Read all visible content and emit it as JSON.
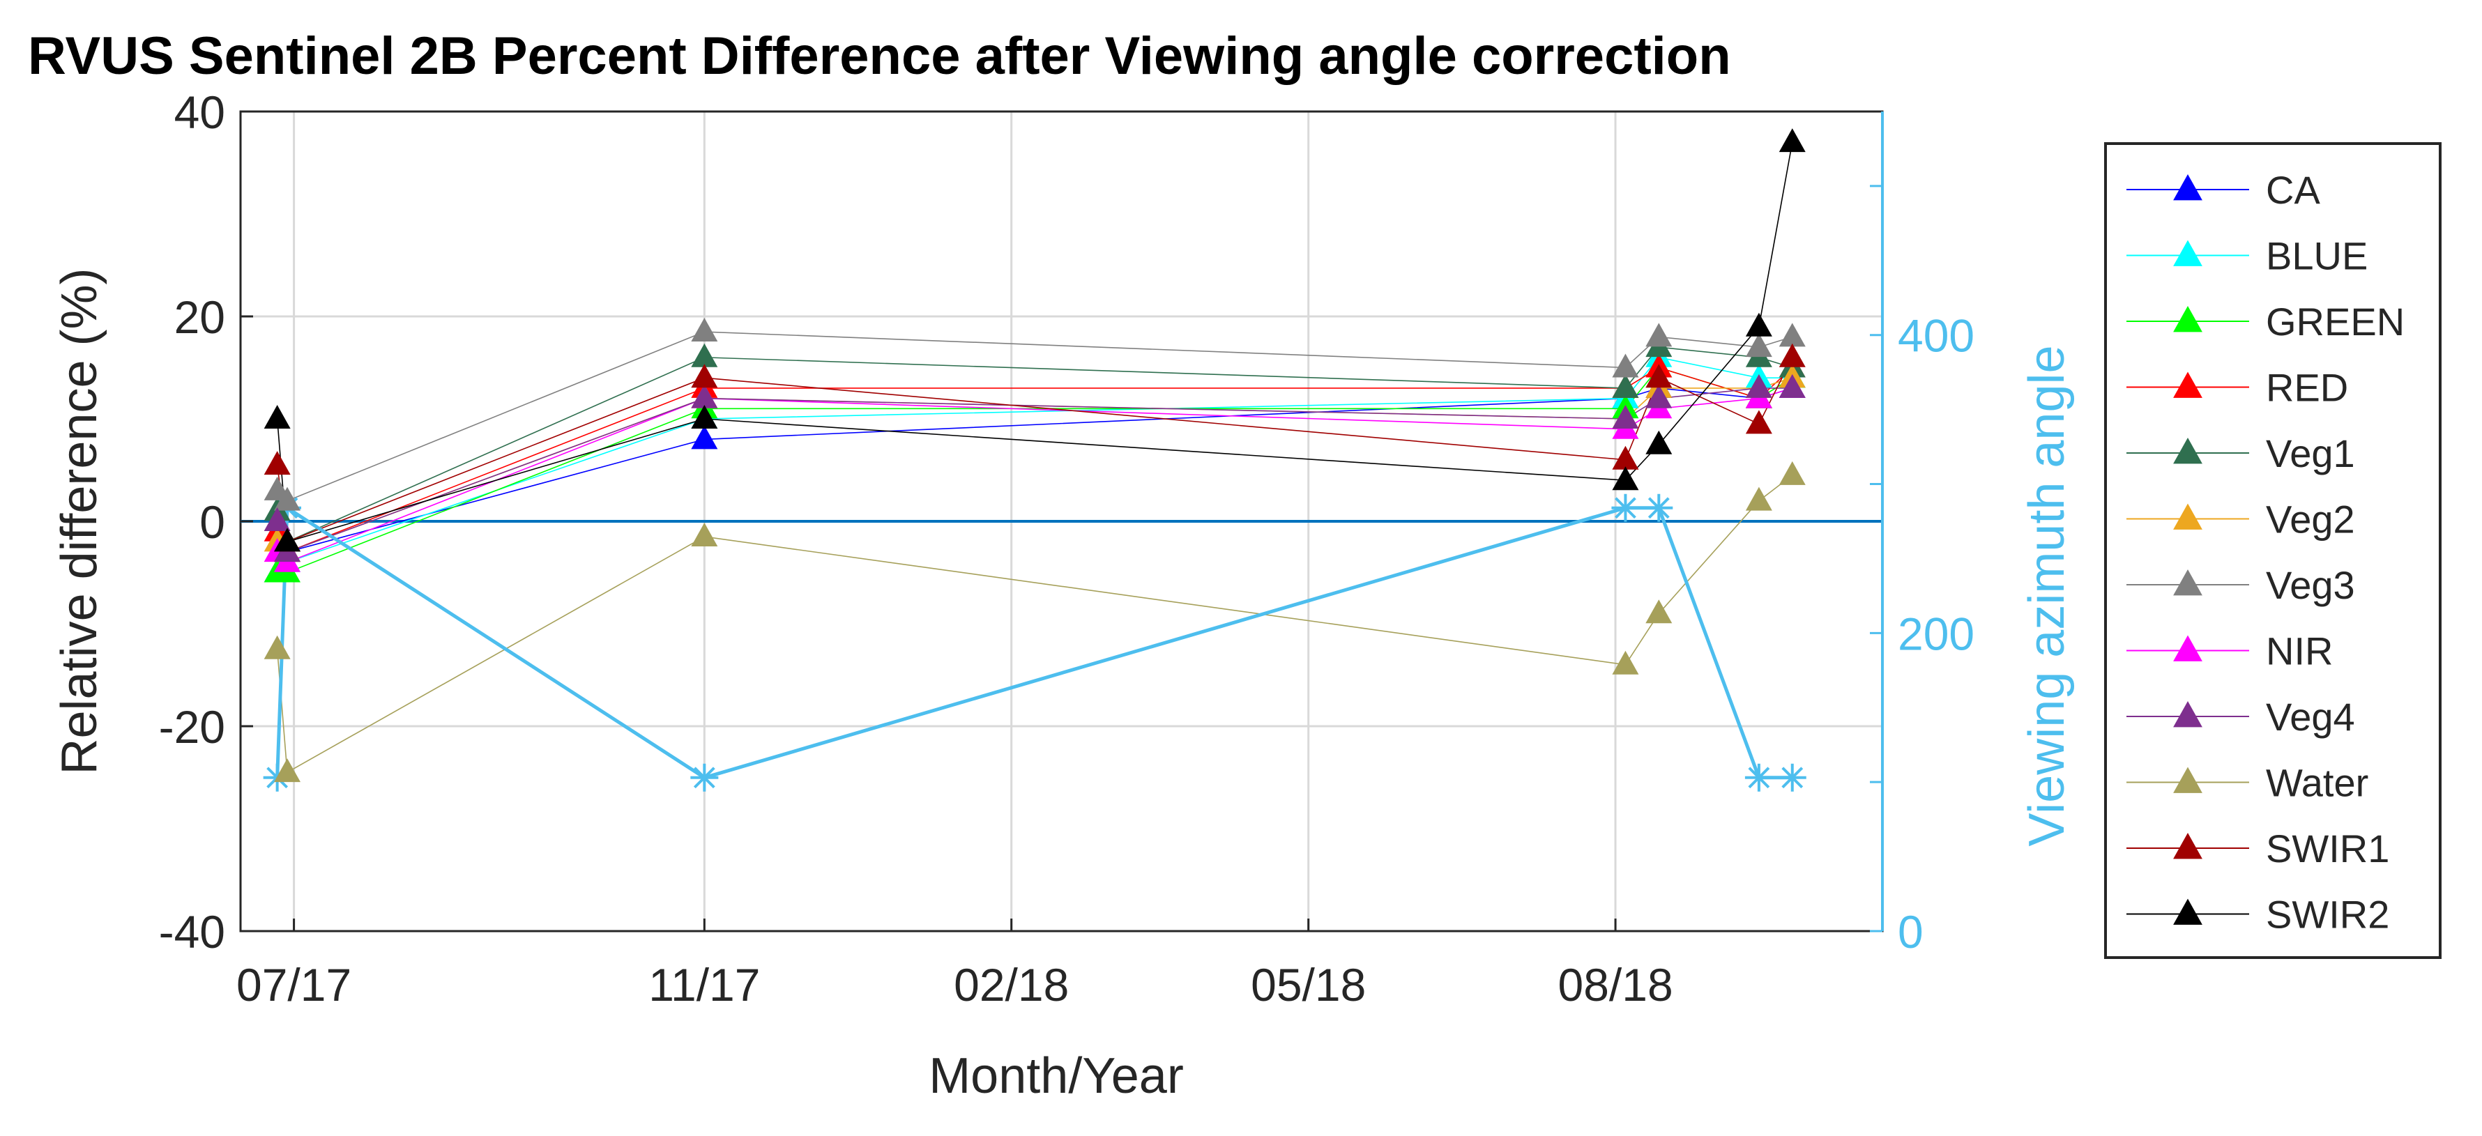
{
  "chart_data": {
    "type": "line",
    "title": "RVUS Sentinel 2B Percent Difference after Viewing angle correction",
    "xlabel": "Month/Year",
    "ylabel": "Relative difference (%)",
    "y2label": "Viewing azimuth angle",
    "xlim": [
      "2017-06-15",
      "2018-10-20"
    ],
    "ylim": [
      -40,
      40
    ],
    "y2lim": [
      0,
      550
    ],
    "yticks": [
      -40,
      -20,
      0,
      20,
      40
    ],
    "y2ticks": [
      0,
      200,
      400
    ],
    "xticks": [
      {
        "date": "2017-07-01",
        "label": "07/17"
      },
      {
        "date": "2017-11-01",
        "label": "11/17"
      },
      {
        "date": "2018-02-01",
        "label": "02/18"
      },
      {
        "date": "2018-05-01",
        "label": "05/18"
      },
      {
        "date": "2018-08-01",
        "label": "08/18"
      }
    ],
    "grid": true,
    "legend_position": "outside-right",
    "zero_line_color": "#0072BD",
    "y2_color": "#4DBEEE",
    "dates": [
      "2017-06-26",
      "2017-06-29",
      "2017-11-01",
      "2018-08-04",
      "2018-08-14",
      "2018-09-13",
      "2018-09-23"
    ],
    "series": [
      {
        "name": "CA",
        "color": "#0000FF",
        "values": [
          -5,
          -3,
          8,
          12,
          13,
          12,
          13
        ]
      },
      {
        "name": "BLUE",
        "color": "#00FFFF",
        "values": [
          -5,
          -4,
          10,
          12,
          16,
          14,
          14
        ]
      },
      {
        "name": "GREEN",
        "color": "#00FF00",
        "values": [
          -5,
          -5,
          11,
          11,
          15,
          12,
          14
        ]
      },
      {
        "name": "RED",
        "color": "#FF0000",
        "values": [
          -1,
          -3,
          13,
          13,
          15,
          12,
          15
        ]
      },
      {
        "name": "Veg1",
        "color": "#2F6F4F",
        "values": [
          1,
          -2,
          16,
          13,
          17,
          16,
          15
        ]
      },
      {
        "name": "Veg2",
        "color": "#EDA720",
        "values": [
          -2,
          -3,
          12,
          10,
          13,
          13,
          14
        ]
      },
      {
        "name": "Veg3",
        "color": "#808080",
        "values": [
          3,
          2,
          18.5,
          15,
          18,
          17,
          18
        ]
      },
      {
        "name": "NIR",
        "color": "#FF00FF",
        "values": [
          -3,
          -4,
          12,
          9,
          11,
          12,
          13
        ]
      },
      {
        "name": "Veg4",
        "color": "#7E2F8E",
        "values": [
          0,
          -3,
          12,
          10,
          12,
          13,
          13
        ]
      },
      {
        "name": "Water",
        "color": "#A6A05A",
        "values": [
          -12.5,
          -24.5,
          -1.5,
          -14,
          -9,
          2,
          4.5
        ]
      },
      {
        "name": "SWIR1",
        "color": "#A00000",
        "values": [
          5.5,
          -2,
          14,
          6,
          14,
          9.5,
          16
        ]
      },
      {
        "name": "SWIR2",
        "color": "#000000",
        "values": [
          10,
          -2,
          10,
          4,
          7.5,
          19,
          37
        ]
      }
    ],
    "y2_series": {
      "name": "Viewing azimuth angle",
      "color": "#4DBEEE",
      "marker": "asterisk",
      "values": [
        103,
        284,
        103,
        284,
        284,
        103,
        103
      ]
    }
  }
}
